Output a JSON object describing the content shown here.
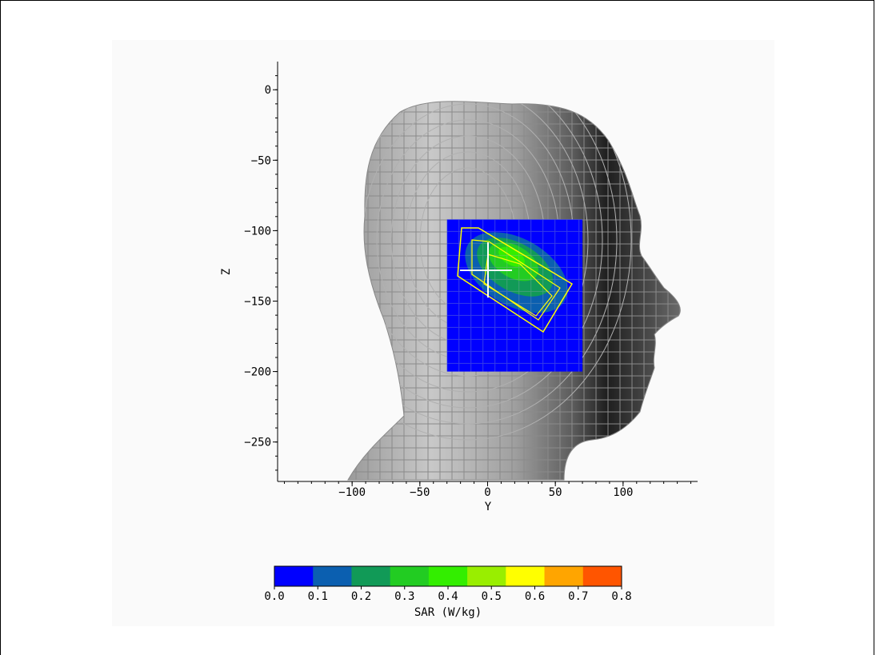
{
  "chart_data": {
    "type": "heatmap",
    "title": "",
    "xlabel": "Y",
    "ylabel": "Z",
    "xlim": [
      -155,
      155
    ],
    "ylim": [
      -278,
      20
    ],
    "x_ticks": [
      -100,
      -50,
      0,
      50,
      100
    ],
    "x_tick_labels": [
      "−100",
      "−50",
      "0",
      "50",
      "100"
    ],
    "y_ticks": [
      0,
      -50,
      -100,
      -150,
      -200,
      -250
    ],
    "y_tick_labels": [
      "0",
      "−50",
      "−100",
      "−150",
      "−200",
      "−250"
    ],
    "sar_region": {
      "y_range": [
        -30,
        70
      ],
      "z_range": [
        -200,
        -92
      ]
    },
    "hotspot": {
      "y": 8,
      "z": -118,
      "peak_sar": 0.35
    },
    "colorbar": {
      "label": "SAR (W/kg)",
      "ticks": [
        0.0,
        0.1,
        0.2,
        0.3,
        0.4,
        0.5,
        0.6,
        0.7,
        0.8
      ],
      "tick_labels": [
        "0.0",
        "0.1",
        "0.2",
        "0.3",
        "0.4",
        "0.5",
        "0.6",
        "0.7",
        "0.8"
      ],
      "colors": [
        "#0000ff",
        "#0b5fb0",
        "#119a57",
        "#22cc22",
        "#33ee00",
        "#99ee00",
        "#ffff00",
        "#ffa500",
        "#ff5500"
      ]
    }
  }
}
